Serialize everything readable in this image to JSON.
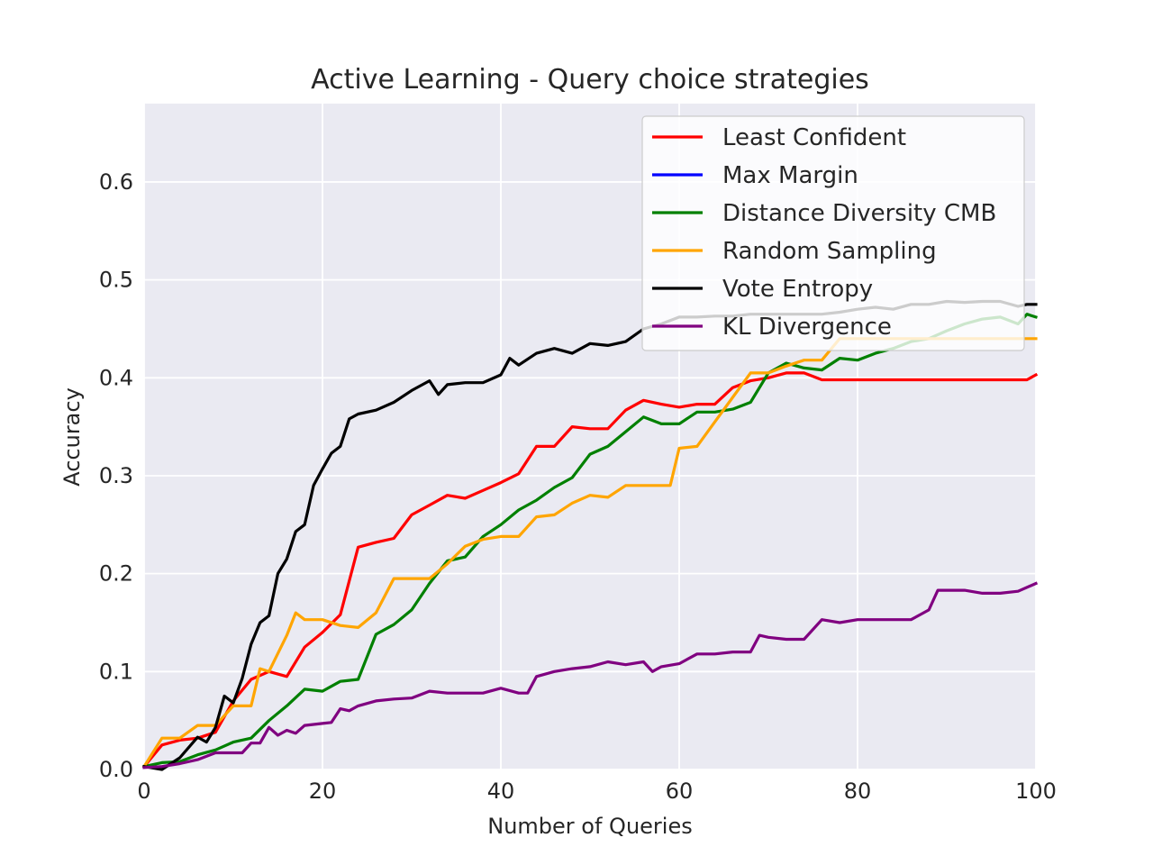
{
  "chart_data": {
    "type": "line",
    "title": "Active Learning - Query choice strategies",
    "xlabel": "Number of Queries",
    "ylabel": "Accuracy",
    "xlim": [
      0,
      100
    ],
    "ylim": [
      0,
      0.68
    ],
    "xticks": [
      0,
      20,
      40,
      60,
      80,
      100
    ],
    "xtick_labels": [
      "0",
      "20",
      "40",
      "60",
      "80",
      "100"
    ],
    "yticks": [
      0.0,
      0.1,
      0.2,
      0.3,
      0.4,
      0.5,
      0.6
    ],
    "ytick_labels": [
      "0.0",
      "0.1",
      "0.2",
      "0.3",
      "0.4",
      "0.5",
      "0.6"
    ],
    "grid": true,
    "background": "#eaeaf2",
    "legend_position": "top-right",
    "series": [
      {
        "name": "Least Confident",
        "color": "#ff0000",
        "x": [
          0,
          2,
          4,
          6,
          8,
          10,
          12,
          14,
          16,
          18,
          20,
          22,
          24,
          26,
          28,
          30,
          32,
          34,
          36,
          38,
          40,
          42,
          44,
          46,
          48,
          50,
          52,
          54,
          56,
          58,
          60,
          62,
          64,
          66,
          68,
          70,
          72,
          74,
          76,
          78,
          80,
          85,
          90,
          95,
          99,
          100
        ],
        "y": [
          0.003,
          0.025,
          0.03,
          0.032,
          0.038,
          0.07,
          0.092,
          0.1,
          0.095,
          0.125,
          0.14,
          0.158,
          0.227,
          0.232,
          0.236,
          0.26,
          0.27,
          0.28,
          0.277,
          0.285,
          0.293,
          0.302,
          0.33,
          0.33,
          0.35,
          0.348,
          0.348,
          0.367,
          0.377,
          0.373,
          0.37,
          0.373,
          0.373,
          0.39,
          0.397,
          0.4,
          0.405,
          0.405,
          0.398,
          0.398,
          0.398,
          0.398,
          0.398,
          0.398,
          0.398,
          0.403
        ]
      },
      {
        "name": "Max Margin",
        "color": "#0000ff",
        "x": [],
        "y": []
      },
      {
        "name": "Distance Diversity CMB",
        "color": "#008000",
        "x": [
          0,
          2,
          4,
          6,
          8,
          10,
          12,
          14,
          16,
          18,
          20,
          22,
          24,
          26,
          28,
          30,
          32,
          34,
          36,
          38,
          40,
          42,
          44,
          46,
          48,
          50,
          52,
          54,
          56,
          58,
          60,
          62,
          64,
          66,
          68,
          70,
          72,
          74,
          76,
          78,
          80,
          82,
          84,
          86,
          88,
          90,
          92,
          94,
          96,
          98,
          99,
          100
        ],
        "y": [
          0.003,
          0.007,
          0.008,
          0.015,
          0.02,
          0.028,
          0.032,
          0.05,
          0.065,
          0.082,
          0.08,
          0.09,
          0.092,
          0.138,
          0.148,
          0.163,
          0.19,
          0.213,
          0.217,
          0.238,
          0.25,
          0.265,
          0.275,
          0.288,
          0.298,
          0.322,
          0.33,
          0.345,
          0.36,
          0.353,
          0.353,
          0.365,
          0.365,
          0.368,
          0.375,
          0.405,
          0.415,
          0.41,
          0.408,
          0.42,
          0.418,
          0.425,
          0.43,
          0.437,
          0.44,
          0.448,
          0.455,
          0.46,
          0.462,
          0.455,
          0.465,
          0.462
        ]
      },
      {
        "name": "Random Sampling",
        "color": "#ffa500",
        "x": [
          0,
          2,
          4,
          6,
          8,
          10,
          12,
          13,
          14,
          16,
          17,
          18,
          20,
          22,
          24,
          26,
          28,
          30,
          32,
          34,
          36,
          38,
          40,
          42,
          44,
          46,
          48,
          50,
          52,
          54,
          56,
          58,
          59,
          60,
          62,
          64,
          66,
          68,
          70,
          72,
          74,
          76,
          78,
          80,
          85,
          90,
          95,
          99,
          100
        ],
        "y": [
          0.003,
          0.032,
          0.032,
          0.045,
          0.045,
          0.065,
          0.065,
          0.103,
          0.1,
          0.137,
          0.16,
          0.153,
          0.153,
          0.147,
          0.145,
          0.16,
          0.195,
          0.195,
          0.195,
          0.21,
          0.228,
          0.235,
          0.238,
          0.238,
          0.258,
          0.26,
          0.272,
          0.28,
          0.278,
          0.29,
          0.29,
          0.29,
          0.29,
          0.328,
          0.33,
          0.355,
          0.38,
          0.405,
          0.405,
          0.412,
          0.418,
          0.418,
          0.44,
          0.44,
          0.44,
          0.44,
          0.44,
          0.44,
          0.44
        ]
      },
      {
        "name": "Vote Entropy",
        "color": "#000000",
        "x": [
          0,
          2,
          4,
          6,
          7,
          8,
          9,
          10,
          11,
          12,
          13,
          14,
          15,
          16,
          17,
          18,
          19,
          20,
          21,
          22,
          23,
          24,
          26,
          28,
          30,
          32,
          33,
          34,
          36,
          38,
          40,
          41,
          42,
          44,
          46,
          48,
          50,
          52,
          54,
          56,
          58,
          60,
          62,
          64,
          66,
          68,
          70,
          72,
          74,
          76,
          78,
          80,
          82,
          84,
          86,
          88,
          90,
          92,
          94,
          96,
          98,
          99,
          100
        ],
        "y": [
          0.003,
          0.0,
          0.012,
          0.033,
          0.028,
          0.043,
          0.075,
          0.068,
          0.093,
          0.128,
          0.15,
          0.157,
          0.2,
          0.215,
          0.243,
          0.25,
          0.29,
          0.307,
          0.323,
          0.33,
          0.358,
          0.363,
          0.367,
          0.375,
          0.387,
          0.397,
          0.383,
          0.393,
          0.395,
          0.395,
          0.403,
          0.42,
          0.413,
          0.425,
          0.43,
          0.425,
          0.435,
          0.433,
          0.437,
          0.45,
          0.455,
          0.462,
          0.462,
          0.463,
          0.463,
          0.465,
          0.465,
          0.465,
          0.465,
          0.465,
          0.467,
          0.47,
          0.472,
          0.47,
          0.475,
          0.475,
          0.478,
          0.477,
          0.478,
          0.478,
          0.473,
          0.475,
          0.475
        ]
      },
      {
        "name": "KL Divergence",
        "color": "#800080",
        "x": [
          0,
          2,
          4,
          6,
          8,
          10,
          11,
          12,
          13,
          14,
          15,
          16,
          17,
          18,
          20,
          21,
          22,
          23,
          24,
          26,
          28,
          30,
          32,
          34,
          36,
          38,
          40,
          42,
          43,
          44,
          46,
          48,
          50,
          52,
          54,
          56,
          57,
          58,
          60,
          62,
          64,
          66,
          68,
          69,
          70,
          72,
          74,
          76,
          78,
          80,
          82,
          84,
          86,
          88,
          89,
          90,
          92,
          94,
          96,
          98,
          100
        ],
        "y": [
          0.002,
          0.003,
          0.006,
          0.01,
          0.017,
          0.017,
          0.017,
          0.027,
          0.027,
          0.043,
          0.035,
          0.04,
          0.037,
          0.045,
          0.047,
          0.048,
          0.062,
          0.06,
          0.065,
          0.07,
          0.072,
          0.073,
          0.08,
          0.078,
          0.078,
          0.078,
          0.083,
          0.078,
          0.078,
          0.095,
          0.1,
          0.103,
          0.105,
          0.11,
          0.107,
          0.11,
          0.1,
          0.105,
          0.108,
          0.118,
          0.118,
          0.12,
          0.12,
          0.137,
          0.135,
          0.133,
          0.133,
          0.153,
          0.15,
          0.153,
          0.153,
          0.153,
          0.153,
          0.163,
          0.183,
          0.183,
          0.183,
          0.18,
          0.18,
          0.182,
          0.19
        ]
      }
    ]
  }
}
